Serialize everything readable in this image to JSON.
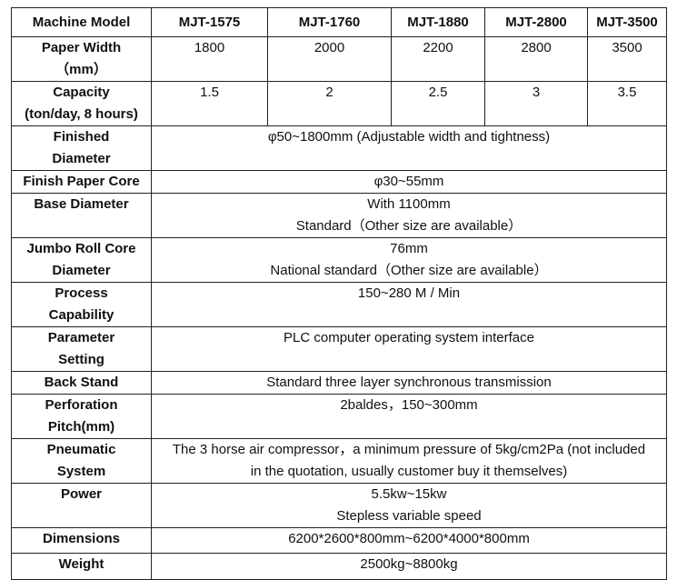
{
  "header": {
    "label": "Machine Model",
    "models": [
      "MJT-1575",
      "MJT-1760",
      "MJT-1880",
      "MJT-2800",
      "MJT-3500"
    ]
  },
  "rows": [
    {
      "label": [
        "Paper Width",
        "（mm）"
      ],
      "values": [
        "1800",
        "2000",
        "2200",
        "2800",
        "3500"
      ]
    },
    {
      "label": [
        "Capacity",
        "(ton/day, 8 hours)"
      ],
      "values": [
        "1.5",
        "2",
        "2.5",
        "3",
        "3.5"
      ]
    },
    {
      "label": [
        "Finished",
        "Diameter"
      ],
      "merged": [
        "φ50~1800mm (Adjustable width and tightness)"
      ]
    },
    {
      "label": [
        "Finish Paper Core"
      ],
      "merged": [
        "φ30~55mm"
      ]
    },
    {
      "label": [
        "Base Diameter"
      ],
      "merged": [
        "With 1100mm",
        "Standard（Other size are available）"
      ]
    },
    {
      "label": [
        "Jumbo Roll Core",
        "Diameter"
      ],
      "merged": [
        "76mm",
        "National standard（Other size are available）"
      ]
    },
    {
      "label": [
        "Process",
        "Capability"
      ],
      "merged": [
        "150~280 M / Min"
      ]
    },
    {
      "label": [
        "Parameter",
        "Setting"
      ],
      "merged": [
        "PLC computer operating system interface"
      ]
    },
    {
      "label": [
        "Back Stand"
      ],
      "merged": [
        "Standard three layer synchronous transmission"
      ]
    },
    {
      "label": [
        "Perforation",
        "Pitch(mm)"
      ],
      "merged": [
        "2baldes，150~300mm"
      ]
    },
    {
      "label": [
        "Pneumatic",
        "System"
      ],
      "merged": [
        "The 3 horse air compressor，a minimum pressure of 5kg/cm2Pa (not included",
        "in the quotation, usually customer buy it themselves)"
      ]
    },
    {
      "label": [
        "Power"
      ],
      "merged": [
        "5.5kw~15kw",
        "Stepless variable speed"
      ]
    },
    {
      "label": [
        "Dimensions"
      ],
      "merged": [
        "6200*2600*800mm~6200*4000*800mm"
      ]
    },
    {
      "label": [
        "Weight"
      ],
      "merged": [
        "2500kg~8800kg"
      ]
    }
  ]
}
